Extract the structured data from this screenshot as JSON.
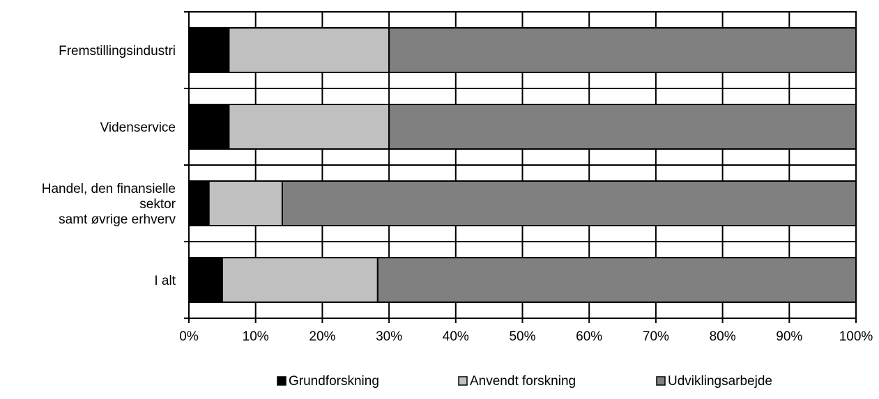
{
  "chart_data": {
    "type": "bar",
    "orientation": "horizontal",
    "stacked": "percent",
    "title": "",
    "xlabel": "",
    "ylabel": "",
    "categories": [
      [
        "Fremstillingsindustri"
      ],
      [
        "Videnservice"
      ],
      [
        "Handel, den finansielle",
        "sektor",
        "samt øvrige erhverv"
      ],
      [
        "I alt"
      ]
    ],
    "series": [
      {
        "name": "Grundforskning",
        "values": [
          6,
          6,
          3,
          5
        ],
        "color": "#000000"
      },
      {
        "name": "Anvendt forskning",
        "values": [
          24,
          24,
          11,
          23.3
        ],
        "color": "#c0c0c0"
      },
      {
        "name": "Udviklingsarbejde",
        "values": [
          70,
          70,
          86,
          71.7
        ],
        "color": "#808080"
      }
    ],
    "xlim": [
      0,
      100
    ],
    "xticks": [
      "0%",
      "10%",
      "20%",
      "30%",
      "40%",
      "50%",
      "60%",
      "70%",
      "80%",
      "90%",
      "100%"
    ],
    "grid": true,
    "legend_position": "bottom"
  }
}
